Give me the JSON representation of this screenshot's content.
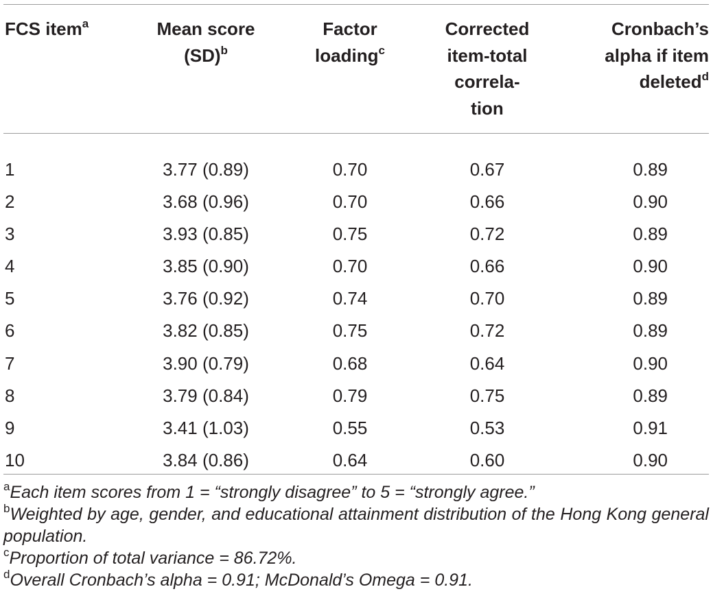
{
  "table": {
    "headers": [
      {
        "text": "FCS item",
        "sup": "a"
      },
      {
        "text": "Mean score (SD)",
        "sup": "b"
      },
      {
        "text": "Factor loading",
        "sup": "c"
      },
      {
        "text": "Corrected item-total correla-tion",
        "sup": ""
      },
      {
        "text": "Cronbach’s alpha if item deleted",
        "sup": "d"
      }
    ],
    "header_lines": {
      "h1": [
        "FCS item"
      ],
      "h2": [
        "Mean score",
        "(SD)"
      ],
      "h3": [
        "Factor",
        "loading"
      ],
      "h4": [
        "Corrected",
        "item-total",
        "correla-",
        "tion"
      ],
      "h5": [
        "Cronbach’s",
        "alpha if item",
        "deleted"
      ]
    },
    "rows": [
      [
        "1",
        "3.77 (0.89)",
        "0.70",
        "0.67",
        "0.89"
      ],
      [
        "2",
        "3.68 (0.96)",
        "0.70",
        "0.66",
        "0.90"
      ],
      [
        "3",
        "3.93 (0.85)",
        "0.75",
        "0.72",
        "0.89"
      ],
      [
        "4",
        "3.85 (0.90)",
        "0.70",
        "0.66",
        "0.90"
      ],
      [
        "5",
        "3.76 (0.92)",
        "0.74",
        "0.70",
        "0.89"
      ],
      [
        "6",
        "3.82 (0.85)",
        "0.75",
        "0.72",
        "0.89"
      ],
      [
        "7",
        "3.90 (0.79)",
        "0.68",
        "0.64",
        "0.90"
      ],
      [
        "8",
        "3.79 (0.84)",
        "0.79",
        "0.75",
        "0.89"
      ],
      [
        "9",
        "3.41 (1.03)",
        "0.55",
        "0.53",
        "0.91"
      ],
      [
        "10",
        "3.84 (0.86)",
        "0.64",
        "0.60",
        "0.90"
      ]
    ]
  },
  "notes": [
    {
      "sup": "a",
      "text": "Each item scores from 1 = “strongly disagree” to 5 = “strongly agree.”"
    },
    {
      "sup": "b",
      "text": "Weighted by age, gender, and educational attainment distribution of the Hong Kong general population."
    },
    {
      "sup": "c",
      "text": "Proportion of total variance = 86.72%."
    },
    {
      "sup": "d",
      "text": "Overall Cronbach’s alpha = 0.91; McDonald’s Omega = 0.91."
    }
  ]
}
